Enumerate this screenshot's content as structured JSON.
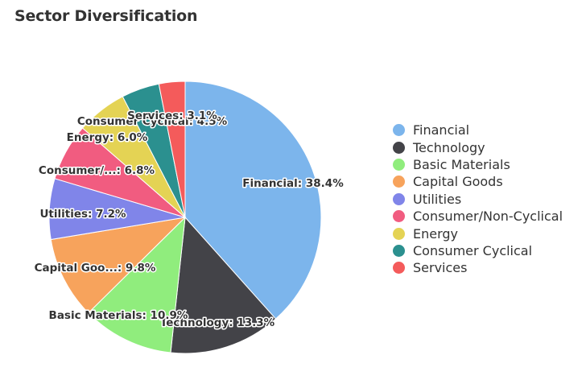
{
  "chart_data": {
    "type": "pie",
    "title": "Sector Diversification",
    "slices": [
      {
        "name": "Financial",
        "value": 38.4,
        "label": "Financial: 38.4%",
        "color": "#7cb5ec"
      },
      {
        "name": "Technology",
        "value": 13.3,
        "label": "Technology: 13.3%",
        "color": "#434348"
      },
      {
        "name": "Basic Materials",
        "value": 10.9,
        "label": "Basic Materials: 10.9%",
        "color": "#90ed7d"
      },
      {
        "name": "Capital Goods",
        "value": 9.8,
        "label": "Capital Goo...: 9.8%",
        "color": "#f7a35c"
      },
      {
        "name": "Utilities",
        "value": 7.2,
        "label": "Utilities: 7.2%",
        "color": "#8085e9"
      },
      {
        "name": "Consumer/Non-Cyclical",
        "value": 6.8,
        "label": "Consumer/...: 6.8%",
        "color": "#f15c80"
      },
      {
        "name": "Energy",
        "value": 6.0,
        "label": "Energy: 6.0%",
        "color": "#e4d354"
      },
      {
        "name": "Consumer Cyclical",
        "value": 4.5,
        "label": "Consumer Cyclical: 4.5%",
        "color": "#2b908f"
      },
      {
        "name": "Services",
        "value": 3.1,
        "label": "Services: 3.1%",
        "color": "#f45b5b"
      }
    ],
    "legend_position": "right"
  }
}
